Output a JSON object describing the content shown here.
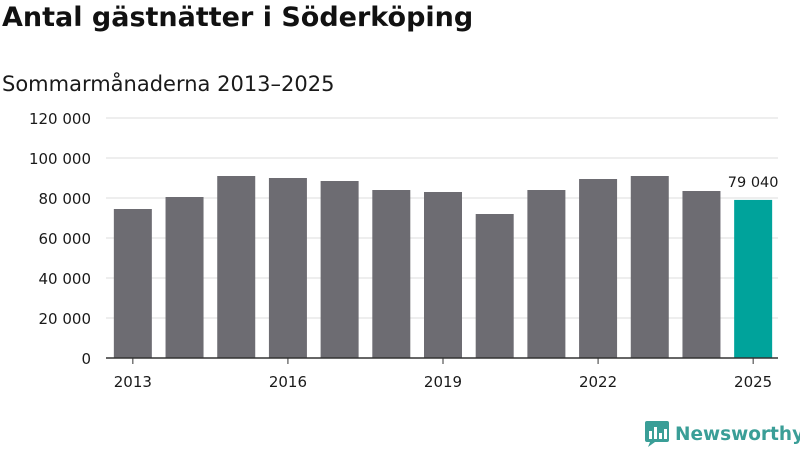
{
  "title": "Antal gästnätter i Söderköping",
  "subtitle": "Sommarmånaderna 2013–2025",
  "brand": {
    "name": "Newsworthy",
    "color": "#3a9e97",
    "logo_icon": "bar-chart-speech-bubble-icon"
  },
  "colors": {
    "bar": "#6d6c72",
    "highlight": "#00a39b",
    "grid": "#dddddd",
    "axis": "#333333",
    "text": "#1a1a1a"
  },
  "chart_data": {
    "type": "bar",
    "x": [
      2013,
      2014,
      2015,
      2016,
      2017,
      2018,
      2019,
      2020,
      2021,
      2022,
      2023,
      2024,
      2025
    ],
    "values": [
      74500,
      80500,
      91000,
      90000,
      88500,
      84000,
      83000,
      72000,
      84000,
      89500,
      91000,
      83500,
      79040
    ],
    "highlight_index": 12,
    "data_labels": [
      {
        "index": 12,
        "text": "79 040"
      }
    ],
    "ylim": [
      0,
      120000
    ],
    "yticks": [
      0,
      20000,
      40000,
      60000,
      80000,
      100000,
      120000
    ],
    "ytick_labels": [
      "0",
      "20 000",
      "40 000",
      "60 000",
      "80 000",
      "100 000",
      "120 000"
    ],
    "xticks": [
      2013,
      2016,
      2019,
      2022,
      2025
    ],
    "xtick_labels": [
      "2013",
      "2016",
      "2019",
      "2022",
      "2025"
    ],
    "grid": true,
    "xlabel": "",
    "ylabel": ""
  }
}
